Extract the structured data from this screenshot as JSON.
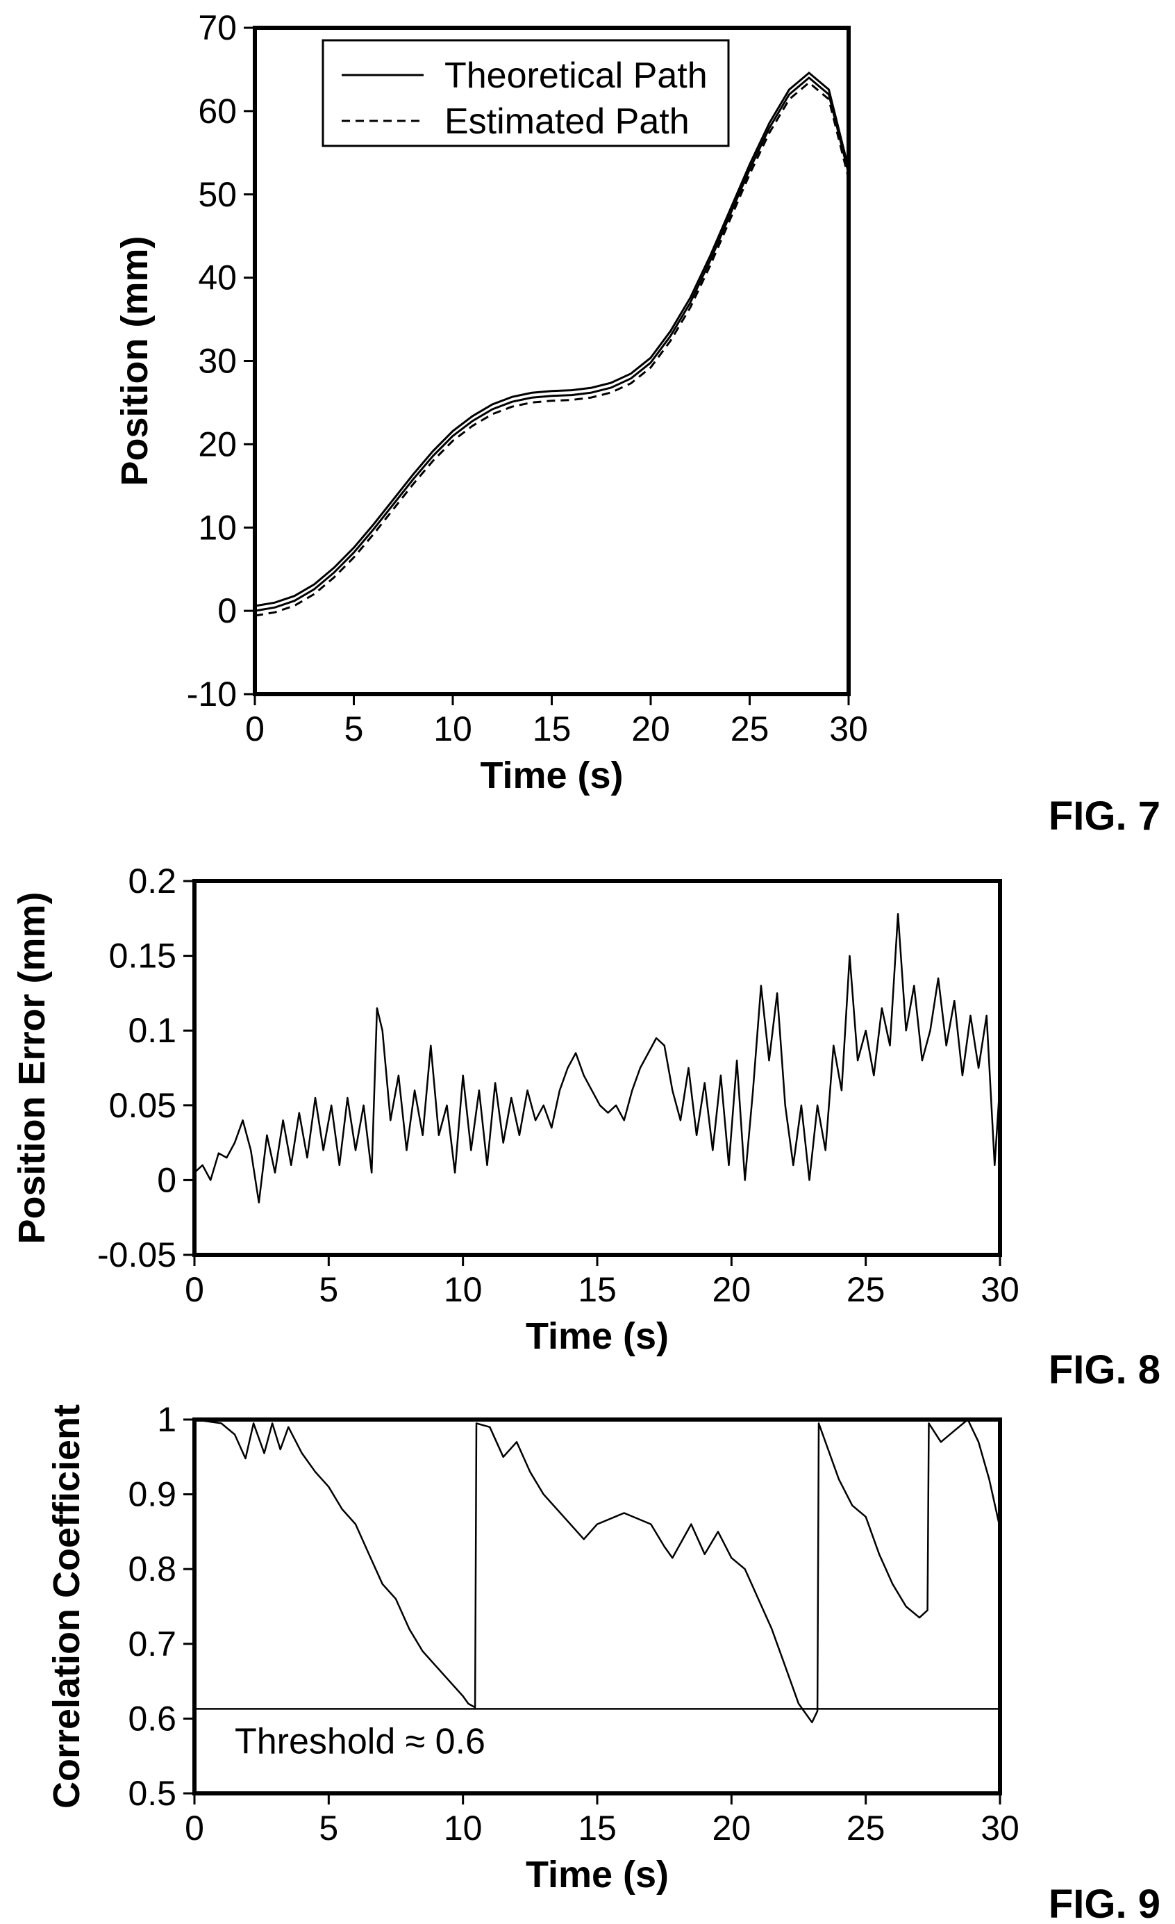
{
  "chart_data": [
    {
      "figure_label": "FIG. 7",
      "type": "line",
      "xlabel": "Time (s)",
      "ylabel": "Position (mm)",
      "xlim": [
        0,
        30
      ],
      "ylim": [
        -10,
        70
      ],
      "xticks": [
        "0",
        "5",
        "10",
        "15",
        "20",
        "25",
        "30"
      ],
      "yticks": [
        "-10",
        "0",
        "10",
        "20",
        "30",
        "40",
        "50",
        "60",
        "70"
      ],
      "grid": false,
      "legend_position": "top-left",
      "series": [
        {
          "name": "Theoretical Path",
          "style": "solid",
          "x": [
            0,
            1,
            2,
            3,
            4,
            5,
            6,
            7,
            8,
            9,
            10,
            11,
            12,
            13,
            14,
            15,
            16,
            17,
            18,
            19,
            20,
            21,
            22,
            23,
            24,
            25,
            26,
            27,
            28,
            29,
            30
          ],
          "y": [
            0,
            0.4,
            1.2,
            2.6,
            4.6,
            7.0,
            9.8,
            12.8,
            15.8,
            18.6,
            21.0,
            22.8,
            24.2,
            25.1,
            25.6,
            25.8,
            25.9,
            26.2,
            26.8,
            27.9,
            29.8,
            33.0,
            37.0,
            42.0,
            47.5,
            53.0,
            58.0,
            62.0,
            64.0,
            62.0,
            52.5
          ]
        },
        {
          "name": "Estimated Path",
          "style": "dashed",
          "x": [
            0,
            1,
            2,
            3,
            4,
            5,
            6,
            7,
            8,
            9,
            10,
            11,
            12,
            13,
            14,
            15,
            16,
            17,
            18,
            19,
            20,
            21,
            22,
            23,
            24,
            25,
            26,
            27,
            28,
            29,
            30
          ],
          "y": [
            0,
            0.4,
            1.2,
            2.6,
            4.6,
            7.0,
            9.8,
            12.8,
            15.8,
            18.6,
            21.0,
            22.8,
            24.2,
            25.1,
            25.6,
            25.8,
            25.9,
            26.2,
            26.8,
            27.9,
            29.8,
            33.0,
            37.0,
            42.0,
            47.5,
            53.0,
            58.0,
            62.0,
            64.0,
            62.0,
            52.5
          ]
        }
      ]
    },
    {
      "figure_label": "FIG. 8",
      "type": "line",
      "xlabel": "Time (s)",
      "ylabel": "Position Error (mm)",
      "xlim": [
        0,
        30
      ],
      "ylim": [
        -0.05,
        0.2
      ],
      "xticks": [
        "0",
        "5",
        "10",
        "15",
        "20",
        "25",
        "30"
      ],
      "yticks": [
        "-0.05",
        "0",
        "0.05",
        "0.1",
        "0.15",
        "0.2"
      ],
      "grid": false,
      "series": [
        {
          "x": [
            0,
            0.3,
            0.6,
            0.9,
            1.2,
            1.5,
            1.8,
            2.1,
            2.4,
            2.7,
            3.0,
            3.3,
            3.6,
            3.9,
            4.2,
            4.5,
            4.8,
            5.1,
            5.4,
            5.7,
            6.0,
            6.3,
            6.6,
            6.8,
            7.0,
            7.3,
            7.6,
            7.9,
            8.2,
            8.5,
            8.8,
            9.1,
            9.4,
            9.7,
            10.0,
            10.3,
            10.6,
            10.9,
            11.2,
            11.5,
            11.8,
            12.1,
            12.4,
            12.7,
            13.0,
            13.3,
            13.6,
            13.9,
            14.2,
            14.5,
            14.8,
            15.1,
            15.4,
            15.7,
            16.0,
            16.3,
            16.6,
            16.9,
            17.2,
            17.5,
            17.8,
            18.1,
            18.4,
            18.7,
            19.0,
            19.3,
            19.6,
            19.9,
            20.2,
            20.5,
            20.8,
            21.1,
            21.4,
            21.7,
            22.0,
            22.3,
            22.6,
            22.9,
            23.2,
            23.5,
            23.8,
            24.1,
            24.4,
            24.7,
            25.0,
            25.3,
            25.6,
            25.9,
            26.2,
            26.5,
            26.8,
            27.1,
            27.4,
            27.7,
            28.0,
            28.3,
            28.6,
            28.9,
            29.2,
            29.5,
            29.8,
            30.0
          ],
          "y": [
            0.005,
            0.01,
            0.0,
            0.018,
            0.015,
            0.025,
            0.04,
            0.02,
            -0.015,
            0.03,
            0.005,
            0.04,
            0.01,
            0.045,
            0.015,
            0.055,
            0.02,
            0.05,
            0.01,
            0.055,
            0.02,
            0.05,
            0.005,
            0.115,
            0.1,
            0.04,
            0.07,
            0.02,
            0.06,
            0.03,
            0.09,
            0.03,
            0.05,
            0.005,
            0.07,
            0.02,
            0.06,
            0.01,
            0.065,
            0.025,
            0.055,
            0.03,
            0.06,
            0.04,
            0.05,
            0.035,
            0.06,
            0.075,
            0.085,
            0.07,
            0.06,
            0.05,
            0.045,
            0.05,
            0.04,
            0.06,
            0.075,
            0.085,
            0.095,
            0.09,
            0.06,
            0.04,
            0.075,
            0.03,
            0.065,
            0.02,
            0.07,
            0.01,
            0.08,
            0.0,
            0.06,
            0.13,
            0.08,
            0.125,
            0.05,
            0.01,
            0.05,
            0.0,
            0.05,
            0.02,
            0.09,
            0.06,
            0.15,
            0.08,
            0.1,
            0.07,
            0.115,
            0.09,
            0.178,
            0.1,
            0.13,
            0.08,
            0.1,
            0.135,
            0.09,
            0.12,
            0.07,
            0.11,
            0.075,
            0.11,
            0.01,
            0.065
          ]
        }
      ]
    },
    {
      "figure_label": "FIG. 9",
      "type": "line",
      "xlabel": "Time (s)",
      "ylabel": "Correlation Coefficient",
      "xlim": [
        0,
        30
      ],
      "ylim": [
        0.5,
        1
      ],
      "xticks": [
        "0",
        "5",
        "10",
        "15",
        "20",
        "25",
        "30"
      ],
      "yticks": [
        "0.5",
        "0.6",
        "0.7",
        "0.8",
        "0.9",
        "1"
      ],
      "grid": false,
      "annotation": "Threshold  ≈ 0.6",
      "threshold": 0.613,
      "series": [
        {
          "x": [
            0,
            1.0,
            1.5,
            1.9,
            2.2,
            2.6,
            2.9,
            3.2,
            3.5,
            4.0,
            4.5,
            5.0,
            5.5,
            6.0,
            6.5,
            7.0,
            7.5,
            8.0,
            8.5,
            9.0,
            9.5,
            10.0,
            10.2,
            10.45,
            10.5,
            11.0,
            11.5,
            12.0,
            12.5,
            13.0,
            13.5,
            14.0,
            14.5,
            15.0,
            16.0,
            17.0,
            17.5,
            17.8,
            18.5,
            19.0,
            19.5,
            20.0,
            20.5,
            21.0,
            21.5,
            22.0,
            22.5,
            23.0,
            23.2,
            23.25,
            23.6,
            24.0,
            24.5,
            25.0,
            25.5,
            26.0,
            26.5,
            27.0,
            27.3,
            27.35,
            27.8,
            28.3,
            28.8,
            29.2,
            29.6,
            30.0
          ],
          "y": [
            1.0,
            0.995,
            0.98,
            0.948,
            0.995,
            0.955,
            0.995,
            0.96,
            0.99,
            0.955,
            0.93,
            0.91,
            0.88,
            0.86,
            0.82,
            0.78,
            0.76,
            0.72,
            0.69,
            0.67,
            0.65,
            0.63,
            0.62,
            0.615,
            0.995,
            0.99,
            0.95,
            0.97,
            0.93,
            0.9,
            0.88,
            0.86,
            0.84,
            0.86,
            0.875,
            0.86,
            0.83,
            0.815,
            0.86,
            0.82,
            0.85,
            0.815,
            0.8,
            0.76,
            0.72,
            0.67,
            0.62,
            0.595,
            0.61,
            0.995,
            0.96,
            0.92,
            0.885,
            0.87,
            0.82,
            0.78,
            0.75,
            0.735,
            0.745,
            0.995,
            0.97,
            0.985,
            1.0,
            0.97,
            0.92,
            0.855
          ]
        }
      ]
    }
  ]
}
